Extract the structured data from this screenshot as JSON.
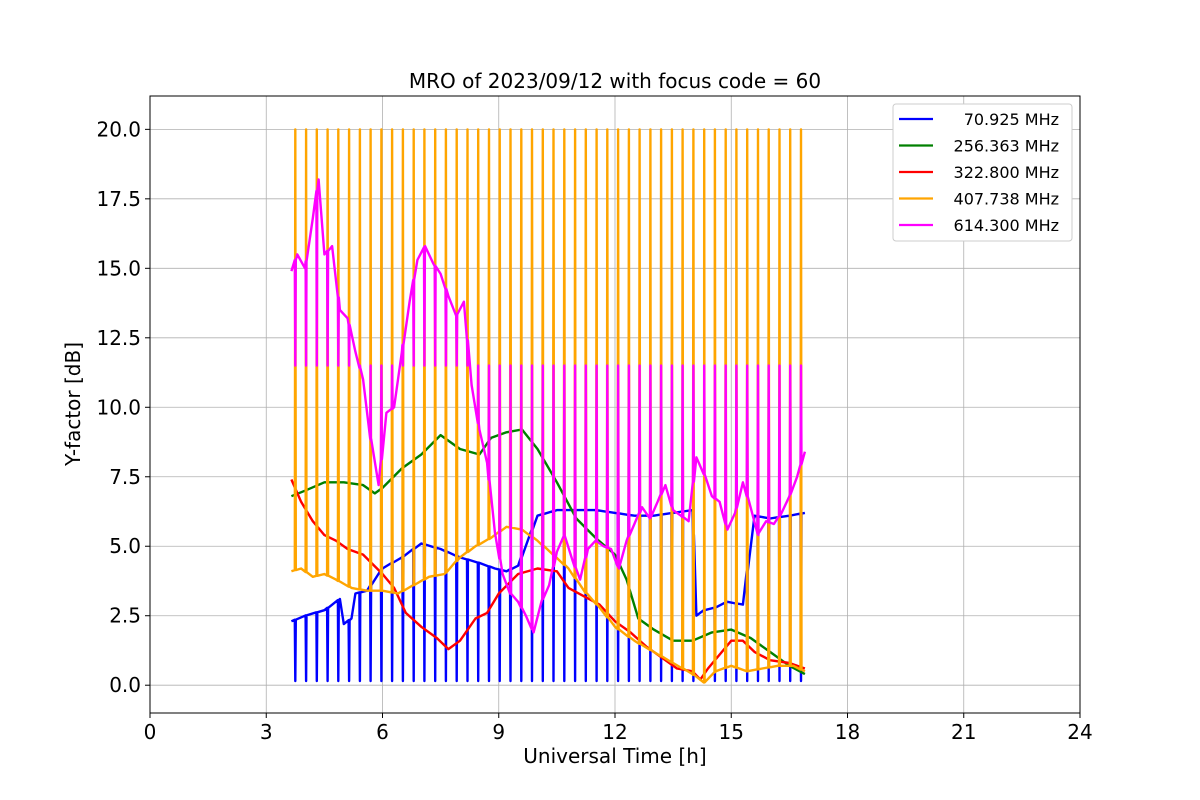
{
  "chart_data": {
    "type": "line",
    "title": "MRO of 2023/09/12 with focus code = 60",
    "xlabel": "Universal Time [h]",
    "ylabel": "Y-factor [dB]",
    "xlim": [
      0,
      24
    ],
    "ylim": [
      -1.0,
      21.2
    ],
    "xticks": [
      0,
      3,
      6,
      9,
      12,
      15,
      18,
      21,
      24
    ],
    "xtick_labels": [
      "0",
      "3",
      "6",
      "9",
      "12",
      "15",
      "18",
      "21",
      "24"
    ],
    "yticks": [
      0.0,
      2.5,
      5.0,
      7.5,
      10.0,
      12.5,
      15.0,
      17.5,
      20.0
    ],
    "ytick_labels": [
      "0.0",
      "2.5",
      "5.0",
      "7.5",
      "10.0",
      "12.5",
      "15.0",
      "17.5",
      "20.0"
    ],
    "grid": true,
    "legend_position": "top-right",
    "calibration_spikes": {
      "count": 48,
      "t_start": 3.75,
      "t_end": 16.8,
      "notes": "periodic calibration spikes: 407.738 MHz to 20.0, 614.300 MHz to 11.5, 70.925 MHz to 0.1"
    },
    "series": [
      {
        "name": "70.925 MHz",
        "color": "#0000ff",
        "spike_to": 0.15,
        "x": [
          3.65,
          4.0,
          4.5,
          4.9,
          5.0,
          5.2,
          5.3,
          5.6,
          6.0,
          6.5,
          7.0,
          7.5,
          8.0,
          8.5,
          8.9,
          9.2,
          9.5,
          10.0,
          10.5,
          11.0,
          11.5,
          12.0,
          12.5,
          13.0,
          13.5,
          14.0,
          14.1,
          14.3,
          14.6,
          14.9,
          15.3,
          15.6,
          16.0,
          16.5,
          16.9
        ],
        "y": [
          2.3,
          2.5,
          2.7,
          3.1,
          2.2,
          2.4,
          3.3,
          3.4,
          4.2,
          4.6,
          5.1,
          4.9,
          4.6,
          4.4,
          4.2,
          4.1,
          4.3,
          6.1,
          6.3,
          6.3,
          6.3,
          6.2,
          6.1,
          6.1,
          6.2,
          6.3,
          2.5,
          2.7,
          2.8,
          3.0,
          2.9,
          6.1,
          6.0,
          6.1,
          6.2
        ]
      },
      {
        "name": "256.363 MHz",
        "color": "#008000",
        "spike_to": null,
        "x": [
          3.65,
          4.0,
          4.5,
          5.0,
          5.5,
          5.8,
          6.0,
          6.5,
          7.0,
          7.5,
          8.0,
          8.5,
          8.8,
          9.2,
          9.6,
          10.0,
          10.5,
          11.0,
          11.5,
          12.0,
          12.3,
          12.6,
          13.0,
          13.5,
          14.0,
          14.5,
          15.0,
          15.5,
          16.0,
          16.5,
          16.9
        ],
        "y": [
          6.8,
          7.0,
          7.3,
          7.3,
          7.2,
          6.9,
          7.1,
          7.8,
          8.3,
          9.0,
          8.5,
          8.3,
          8.9,
          9.1,
          9.2,
          8.5,
          7.3,
          6.0,
          5.3,
          4.7,
          3.8,
          2.4,
          2.0,
          1.6,
          1.6,
          1.9,
          2.0,
          1.7,
          1.2,
          0.7,
          0.4
        ]
      },
      {
        "name": "322.800 MHz",
        "color": "#ff0000",
        "spike_to": null,
        "x": [
          3.65,
          3.9,
          4.2,
          4.5,
          4.8,
          5.1,
          5.5,
          6.0,
          6.3,
          6.6,
          7.0,
          7.4,
          7.7,
          8.0,
          8.4,
          8.7,
          9.0,
          9.5,
          10.0,
          10.5,
          10.8,
          11.2,
          11.6,
          12.0,
          12.4,
          12.8,
          13.2,
          13.6,
          14.0,
          14.2,
          14.4,
          14.7,
          15.0,
          15.3,
          15.6,
          16.0,
          16.5,
          16.9
        ],
        "y": [
          7.4,
          6.6,
          5.9,
          5.4,
          5.2,
          4.9,
          4.7,
          4.0,
          3.5,
          2.6,
          2.1,
          1.7,
          1.3,
          1.6,
          2.4,
          2.6,
          3.3,
          4.0,
          4.2,
          4.1,
          3.5,
          3.2,
          2.9,
          2.3,
          1.9,
          1.4,
          1.0,
          0.6,
          0.5,
          0.2,
          0.6,
          1.1,
          1.6,
          1.6,
          1.2,
          0.9,
          0.8,
          0.6
        ]
      },
      {
        "name": "407.738 MHz",
        "color": "#ffa500",
        "spike_to": 20.0,
        "x": [
          3.65,
          3.9,
          4.2,
          4.5,
          4.8,
          5.2,
          5.6,
          6.0,
          6.4,
          6.8,
          7.2,
          7.6,
          8.0,
          8.4,
          8.8,
          9.2,
          9.6,
          10.0,
          10.4,
          10.8,
          11.2,
          11.6,
          12.0,
          12.5,
          13.0,
          13.5,
          14.0,
          14.3,
          14.6,
          15.0,
          15.4,
          15.8,
          16.2,
          16.6,
          16.9
        ],
        "y": [
          4.1,
          4.2,
          3.9,
          4.0,
          3.8,
          3.5,
          3.4,
          3.4,
          3.3,
          3.6,
          3.9,
          4.0,
          4.6,
          5.0,
          5.3,
          5.7,
          5.6,
          5.2,
          4.7,
          4.2,
          3.4,
          2.8,
          2.1,
          1.6,
          1.2,
          0.8,
          0.4,
          0.1,
          0.5,
          0.7,
          0.5,
          0.6,
          0.7,
          0.7,
          0.5
        ]
      },
      {
        "name": "614.300 MHz",
        "color": "#ff00ff",
        "spike_to": 11.5,
        "x": [
          3.65,
          3.8,
          4.0,
          4.2,
          4.35,
          4.5,
          4.7,
          4.9,
          5.1,
          5.3,
          5.5,
          5.7,
          5.9,
          6.1,
          6.3,
          6.5,
          6.7,
          6.9,
          7.1,
          7.3,
          7.5,
          7.7,
          7.9,
          8.1,
          8.3,
          8.5,
          8.7,
          8.9,
          9.1,
          9.3,
          9.5,
          9.7,
          9.9,
          10.1,
          10.3,
          10.5,
          10.7,
          10.9,
          11.1,
          11.3,
          11.5,
          11.7,
          11.9,
          12.1,
          12.3,
          12.5,
          12.7,
          12.9,
          13.1,
          13.3,
          13.5,
          13.7,
          13.9,
          14.1,
          14.3,
          14.5,
          14.7,
          14.9,
          15.1,
          15.3,
          15.5,
          15.7,
          15.9,
          16.1,
          16.3,
          16.5,
          16.7,
          16.9
        ],
        "y": [
          14.9,
          15.5,
          15.0,
          16.8,
          18.2,
          15.5,
          15.8,
          13.5,
          13.2,
          12.0,
          11.0,
          8.8,
          7.2,
          9.8,
          10.0,
          12.0,
          13.8,
          15.3,
          15.8,
          15.2,
          14.8,
          14.0,
          13.3,
          13.8,
          10.8,
          9.2,
          8.0,
          5.5,
          4.0,
          3.3,
          3.0,
          2.5,
          1.9,
          3.0,
          3.6,
          4.8,
          5.4,
          4.5,
          3.8,
          4.9,
          5.2,
          5.0,
          4.9,
          4.2,
          5.2,
          5.8,
          6.4,
          6.0,
          6.6,
          7.2,
          6.3,
          6.1,
          5.9,
          8.2,
          7.6,
          6.8,
          6.6,
          5.6,
          6.2,
          7.3,
          6.4,
          5.4,
          5.9,
          5.8,
          6.2,
          6.8,
          7.5,
          8.4
        ]
      }
    ]
  }
}
